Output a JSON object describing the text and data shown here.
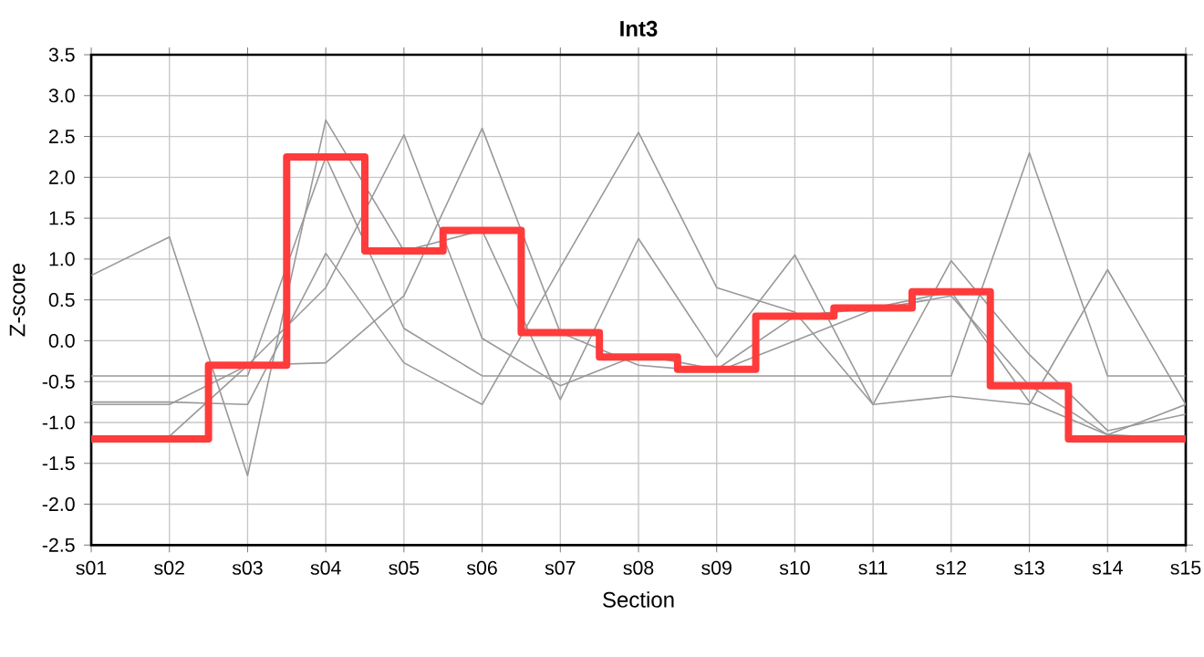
{
  "chart_data": {
    "type": "line",
    "title": "Int3",
    "xlabel": "Section",
    "ylabel": "Z-score",
    "categories": [
      "s01",
      "s02",
      "s03",
      "s04",
      "s05",
      "s06",
      "s07",
      "s08",
      "s09",
      "s10",
      "s11",
      "s12",
      "s13",
      "s14",
      "s15"
    ],
    "ylim": [
      -2.5,
      3.5
    ],
    "yticks": [
      -2.5,
      {
        "value": -2,
        "label": "-2.0"
      },
      -1.5,
      {
        "value": -1,
        "label": "-1.0"
      },
      -0.5,
      {
        "value": 0,
        "label": "0.0"
      },
      0.5,
      {
        "value": 1,
        "label": "1.0"
      },
      1.5,
      {
        "value": 2,
        "label": "2.0"
      },
      2.5,
      {
        "value": 3,
        "label": "3.0"
      },
      3.5
    ],
    "grid": true,
    "marker": "none",
    "series": [
      {
        "color": "#999999",
        "values": [
          0.8,
          1.27,
          -1.65,
          2.7,
          1.1,
          1.35,
          -0.72,
          1.25,
          -0.2,
          1.05,
          -0.78,
          0.98,
          -0.17,
          -1.1,
          -0.9
        ]
      },
      {
        "color": "#999999",
        "values": [
          -0.43,
          -0.43,
          -0.43,
          2.25,
          0.15,
          -0.43,
          -0.43,
          -0.43,
          -0.43,
          -0.43,
          -0.43,
          -0.43,
          2.3,
          -0.43,
          -0.43
        ]
      },
      {
        "color": "#999999",
        "values": [
          -0.75,
          -0.75,
          -0.78,
          1.07,
          -0.27,
          -0.78,
          0.9,
          2.55,
          0.65,
          0.35,
          -0.78,
          -0.68,
          -0.78,
          0.87,
          -0.78
        ]
      },
      {
        "color": "#999999",
        "values": [
          -0.78,
          -0.78,
          -0.3,
          -0.27,
          0.55,
          2.6,
          0.1,
          -0.3,
          -0.38,
          0.0,
          0.38,
          0.55,
          -0.55,
          -1.15,
          -0.78
        ]
      },
      {
        "color": "#999999",
        "values": [
          -1.2,
          -1.17,
          -0.3,
          0.65,
          2.52,
          0.03,
          -0.55,
          -0.17,
          -0.35,
          0.3,
          0.4,
          0.6,
          -0.75,
          -1.15,
          -1.2
        ]
      },
      {
        "type": "step",
        "color": "#ff3b3b",
        "values": [
          -1.2,
          -1.2,
          -0.3,
          2.25,
          1.1,
          1.35,
          0.1,
          -0.2,
          -0.35,
          0.3,
          0.4,
          0.6,
          -0.55,
          -1.2,
          -1.2
        ]
      }
    ]
  }
}
